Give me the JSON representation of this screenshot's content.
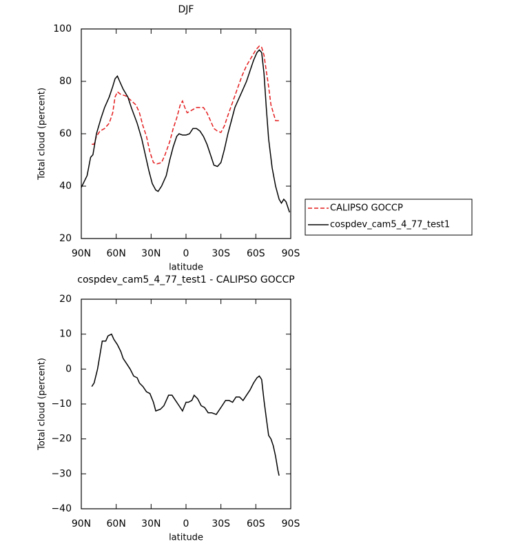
{
  "chart_data": [
    {
      "type": "line",
      "title": "DJF",
      "x_label": "latitude",
      "y_label": "Total cloud (percent)",
      "xlim": [
        90,
        -90
      ],
      "xticks": [
        {
          "value": 90,
          "label": "90N"
        },
        {
          "value": 60,
          "label": "60N"
        },
        {
          "value": 30,
          "label": "30N"
        },
        0,
        {
          "value": -30,
          "label": "30S"
        },
        {
          "value": -60,
          "label": "60S"
        },
        {
          "value": -90,
          "label": "90S"
        }
      ],
      "ylim": [
        20,
        100
      ],
      "yticks": [
        20,
        40,
        60,
        80,
        100
      ],
      "legend_position": "right",
      "series": [
        {
          "name": "CALIPSO GOCCP",
          "color": "#e41a1c",
          "line_style": "dashed",
          "x": [
            81,
            79,
            77,
            74,
            70,
            66,
            63,
            61,
            59,
            56,
            52,
            48,
            43,
            40,
            37,
            34,
            31,
            28,
            25,
            21,
            18,
            14,
            11,
            8,
            5,
            3,
            1,
            -1,
            -5,
            -9,
            -15,
            -18,
            -21,
            -24,
            -27,
            -30,
            -33,
            -36,
            -40,
            -44,
            -48,
            -52,
            -56,
            -60,
            -63,
            -65,
            -67,
            -69,
            -71,
            -73,
            -75,
            -77,
            -80,
            -81
          ],
          "values": [
            56,
            56,
            59,
            61,
            62,
            64,
            68,
            74,
            76,
            75,
            74.5,
            73,
            71,
            68,
            63,
            59,
            53,
            49,
            48.5,
            49,
            52,
            57,
            62,
            66,
            71,
            72.5,
            70,
            68,
            69,
            70,
            70,
            68,
            65,
            62,
            61,
            60.5,
            63,
            67,
            72,
            77,
            82,
            86,
            89,
            92,
            93.5,
            93,
            90,
            84,
            78,
            71,
            68,
            65,
            65,
            64.5
          ]
        },
        {
          "name": "cospdev_cam5_4_77_test1",
          "color": "#000000",
          "line_style": "solid",
          "x": [
            90,
            85,
            82,
            80,
            77,
            73,
            70,
            66,
            63,
            61,
            59,
            57,
            54,
            50,
            47,
            42,
            38,
            35,
            32,
            29,
            26,
            24,
            21,
            17,
            14,
            11,
            8,
            6,
            3,
            0,
            -3,
            -6,
            -9,
            -12,
            -15,
            -18,
            -21,
            -24,
            -27,
            -30,
            -33,
            -36,
            -39,
            -42,
            -45,
            -48,
            -52,
            -55,
            -58,
            -61,
            -63,
            -65,
            -67,
            -69,
            -71,
            -74,
            -77,
            -80,
            -82,
            -84,
            -86,
            -89
          ],
          "values": [
            39.5,
            44,
            51,
            52,
            60,
            66,
            70,
            74,
            78,
            81,
            82,
            80,
            77,
            74,
            70,
            64,
            58,
            52,
            46,
            41,
            38.5,
            38,
            40,
            44,
            50,
            55,
            59,
            60,
            59.5,
            59.5,
            60,
            62,
            62,
            61,
            59,
            56,
            52,
            48,
            47.5,
            49,
            54,
            60,
            65,
            70,
            73,
            76,
            80,
            84,
            88,
            91,
            92,
            91,
            83,
            70,
            58,
            47,
            40,
            35,
            33.5,
            35,
            34,
            30
          ]
        }
      ]
    },
    {
      "type": "line",
      "title": "cospdev_cam5_4_77_test1 - CALIPSO GOCCP",
      "x_label": "latitude",
      "y_label": "Total cloud (percent)",
      "xlim": [
        90,
        -90
      ],
      "xticks": [
        {
          "value": 90,
          "label": "90N"
        },
        {
          "value": 60,
          "label": "60N"
        },
        {
          "value": 30,
          "label": "30N"
        },
        0,
        {
          "value": -30,
          "label": "30S"
        },
        {
          "value": -60,
          "label": "60S"
        },
        {
          "value": -90,
          "label": "90S"
        }
      ],
      "ylim": [
        -40,
        20
      ],
      "yticks": [
        {
          "value": -40,
          "label": "−40"
        },
        {
          "value": -30,
          "label": "−30"
        },
        {
          "value": -20,
          "label": "−20"
        },
        {
          "value": -10,
          "label": "−10"
        },
        0,
        10,
        20
      ],
      "color": "#000000",
      "x": [
        81,
        79,
        76,
        74,
        72,
        69,
        67,
        64,
        62,
        59,
        56,
        54,
        51,
        48,
        45,
        42,
        40,
        37,
        34,
        31,
        28,
        26,
        22,
        19,
        17,
        15,
        12,
        9,
        6,
        3,
        0,
        -2,
        -5,
        -7,
        -10,
        -13,
        -16,
        -19,
        -22,
        -26,
        -28,
        -31,
        -34,
        -37,
        -40,
        -43,
        -46,
        -49,
        -52,
        -55,
        -58,
        -61,
        -63,
        -65,
        -67,
        -69,
        -71,
        -73,
        -75,
        -77,
        -79,
        -80
      ],
      "values": [
        -5,
        -4,
        0,
        4,
        8,
        8,
        9.5,
        10,
        8.5,
        7,
        5,
        3,
        1.5,
        0,
        -2,
        -2.5,
        -4,
        -5,
        -6.5,
        -7,
        -9.5,
        -12,
        -11.5,
        -10.5,
        -9,
        -7.5,
        -7.5,
        -9,
        -10.5,
        -12,
        -9.5,
        -9.5,
        -9,
        -7.5,
        -8.5,
        -10.5,
        -11,
        -12.5,
        -12.5,
        -13,
        -12,
        -10.5,
        -9,
        -9,
        -9.5,
        -8,
        -8,
        -9,
        -7.5,
        -6,
        -4,
        -2.5,
        -2,
        -3,
        -9,
        -14,
        -19,
        -20,
        -22,
        -25,
        -29,
        -30.5
      ]
    }
  ]
}
